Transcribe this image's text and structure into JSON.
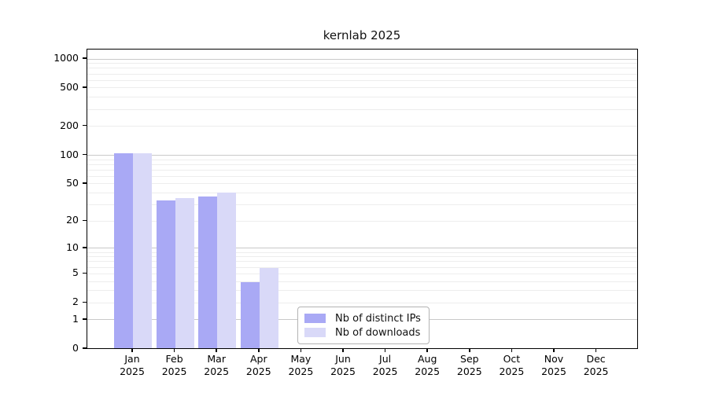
{
  "chart_data": {
    "type": "bar",
    "title": "kernlab 2025",
    "categories": [
      "Jan 2025",
      "Feb 2025",
      "Mar 2025",
      "Apr 2025",
      "May 2025",
      "Jun 2025",
      "Jul 2025",
      "Aug 2025",
      "Sep 2025",
      "Oct 2025",
      "Nov 2025",
      "Dec 2025"
    ],
    "month_labels": [
      "Jan",
      "Feb",
      "Mar",
      "Apr",
      "May",
      "Jun",
      "Jul",
      "Aug",
      "Sep",
      "Oct",
      "Nov",
      "Dec"
    ],
    "year_label": "2025",
    "series": [
      {
        "name": "Nb of distinct IPs",
        "color": "#a9a9f5",
        "values": [
          105,
          34,
          37,
          4,
          0,
          0,
          0,
          0,
          0,
          0,
          0,
          0
        ]
      },
      {
        "name": "Nb of downloads",
        "color": "#d9d9f8",
        "values": [
          106,
          36,
          41,
          6,
          0,
          0,
          0,
          0,
          0,
          0,
          0,
          0
        ]
      }
    ],
    "xlabel": "",
    "ylabel": "",
    "y_scale": "log1p",
    "ylim": [
      0,
      1250
    ],
    "y_tick_labels": [
      0,
      1,
      2,
      5,
      10,
      20,
      50,
      100,
      200,
      500,
      1000
    ],
    "major_gridlines": [
      1,
      10,
      100,
      1000
    ],
    "minor_gridlines": [
      2,
      3,
      4,
      5,
      6,
      7,
      8,
      9,
      20,
      30,
      40,
      50,
      60,
      70,
      80,
      90,
      200,
      300,
      400,
      500,
      600,
      700,
      800,
      900
    ],
    "grid": true,
    "legend_position": "lower-center-inside"
  },
  "colors": {
    "background": "#ffffff",
    "axis_border": "#000000",
    "major_grid": "#c9c9c9",
    "minor_grid": "#ededed",
    "text": "#111111",
    "legend_border": "#b3b3b3",
    "bar_distinct_ips": "#a9a9f5",
    "bar_downloads": "#d9d9f8"
  }
}
